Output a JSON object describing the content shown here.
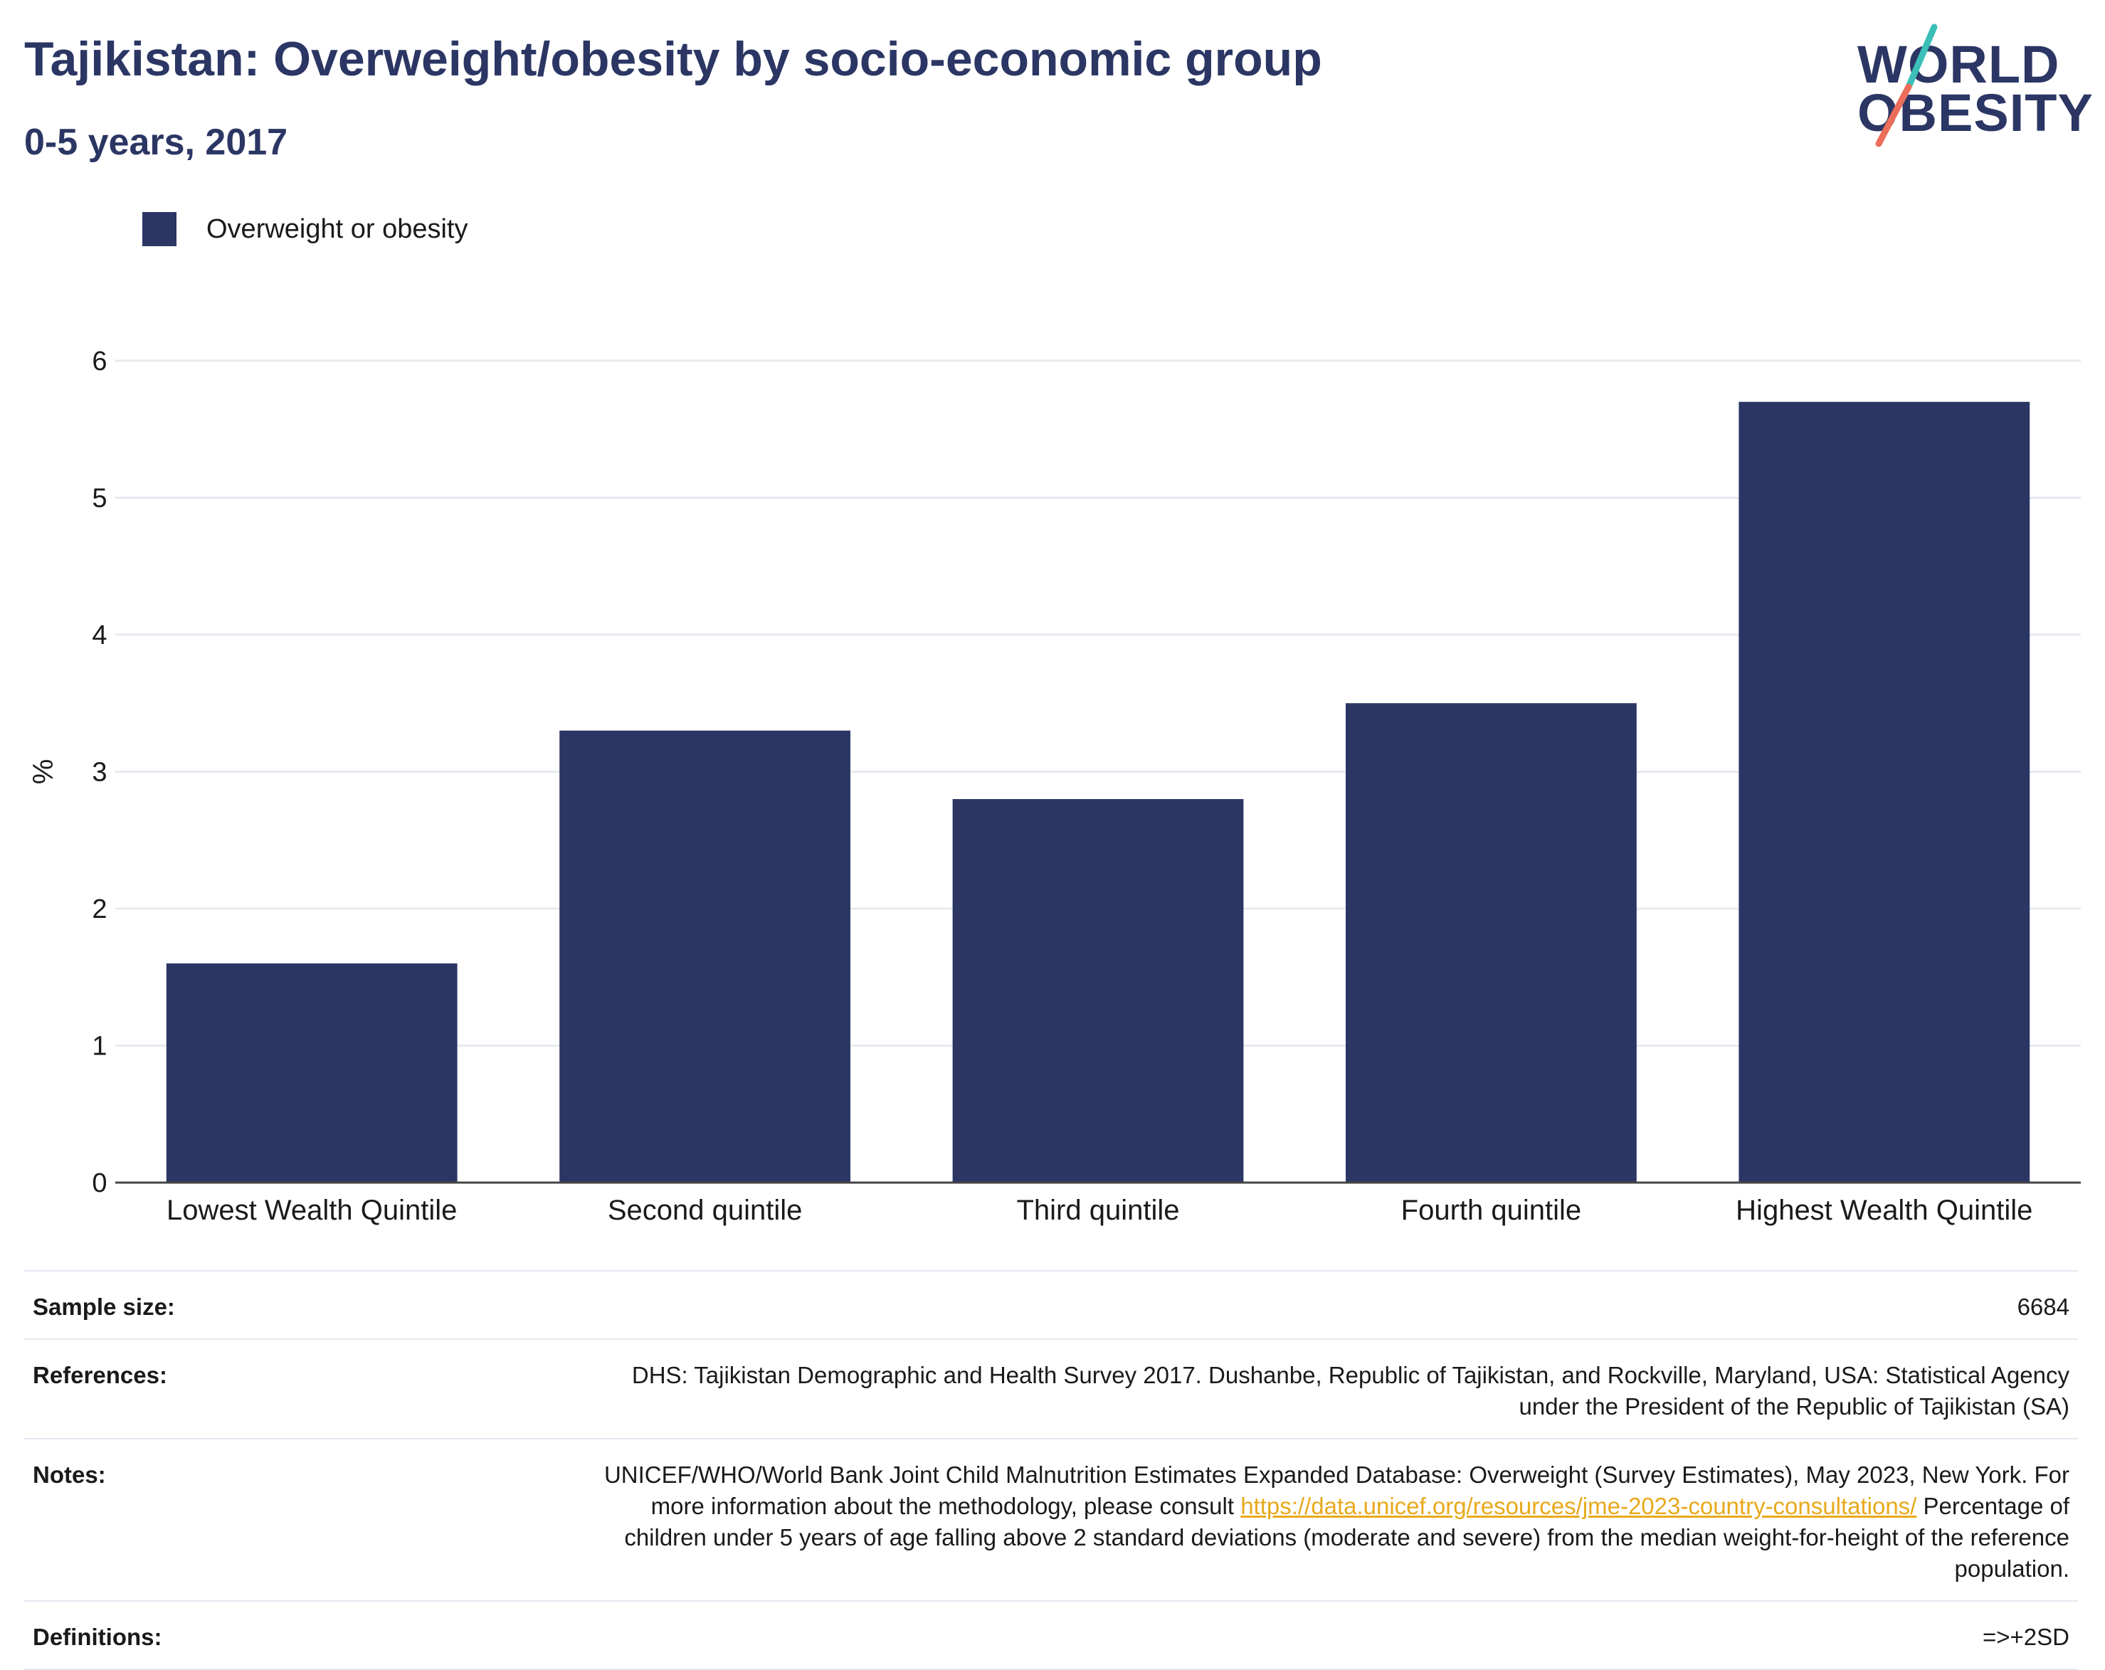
{
  "header": {
    "title": "Tajikistan: Overweight/obesity by socio-economic group",
    "subtitle": "0-5 years, 2017"
  },
  "logo": {
    "line1": "WORLD",
    "line2": "OBESITY",
    "accent_teal": "#3bbfb6",
    "accent_coral": "#ec6e5a"
  },
  "colors": {
    "bar": "#2b3664",
    "text_dark": "#2b3664",
    "link": "#e8a91b"
  },
  "chart_data": {
    "type": "bar",
    "categories": [
      "Lowest Wealth Quintile",
      "Second quintile",
      "Third quintile",
      "Fourth quintile",
      "Highest Wealth Quintile"
    ],
    "series": [
      {
        "name": "Overweight or obesity",
        "values": [
          1.6,
          3.3,
          2.8,
          3.5,
          5.7
        ]
      }
    ],
    "ylabel": "%",
    "ylim": [
      0,
      6
    ],
    "yticks": [
      "0",
      "1",
      "2",
      "3",
      "4",
      "5",
      "6"
    ],
    "grid": true,
    "legend_position": "top-left"
  },
  "info": {
    "sample_size_label": "Sample size:",
    "sample_size_value": "6684",
    "references_label": "References:",
    "references_value": "DHS: Tajikistan Demographic and Health Survey 2017. Dushanbe, Republic of Tajikistan, and Rockville, Maryland, USA: Statistical Agency under the President of the Republic of Tajikistan (SA)",
    "notes_label": "Notes:",
    "notes_text_before": "UNICEF/WHO/World Bank Joint Child Malnutrition Estimates Expanded Database: Overweight (Survey Estimates), May 2023, New York. For more information about the methodology, please consult ",
    "notes_link": "https://data.unicef.org/resources/jme-2023-country-consultations/",
    "notes_text_after": " Percentage of children under 5 years of age falling above 2 standard deviations (moderate and severe) from the median weight-for-height of the reference population.",
    "definitions_label": "Definitions:",
    "definitions_value": "=>+2SD"
  }
}
